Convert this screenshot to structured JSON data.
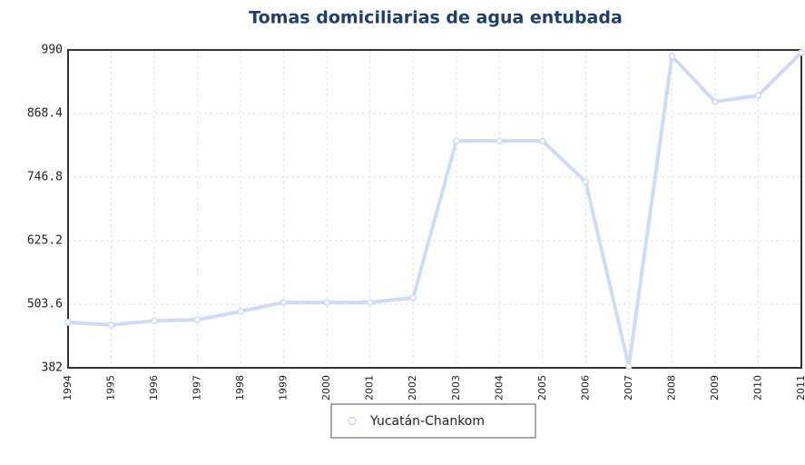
{
  "chart_data": {
    "type": "line",
    "title": "Tomas domiciliarias de agua entubada",
    "categories": [
      "1994",
      "1995",
      "1996",
      "1997",
      "1998",
      "1999",
      "2000",
      "2001",
      "2002",
      "2003",
      "2004",
      "2005",
      "2006",
      "2007",
      "2008",
      "2009",
      "2010",
      "2011"
    ],
    "series": [
      {
        "name": "Yucatán-Chankom",
        "color": "#cfdcf3",
        "values": [
          469,
          464,
          472,
          474,
          490,
          507,
          507,
          507,
          516,
          816,
          816,
          816,
          738,
          385,
          978,
          891,
          903,
          985
        ]
      }
    ],
    "ylim": [
      382,
      990
    ],
    "yticks": [
      382,
      503.6,
      625.2,
      746.8,
      868.4,
      990
    ],
    "grid": true
  }
}
